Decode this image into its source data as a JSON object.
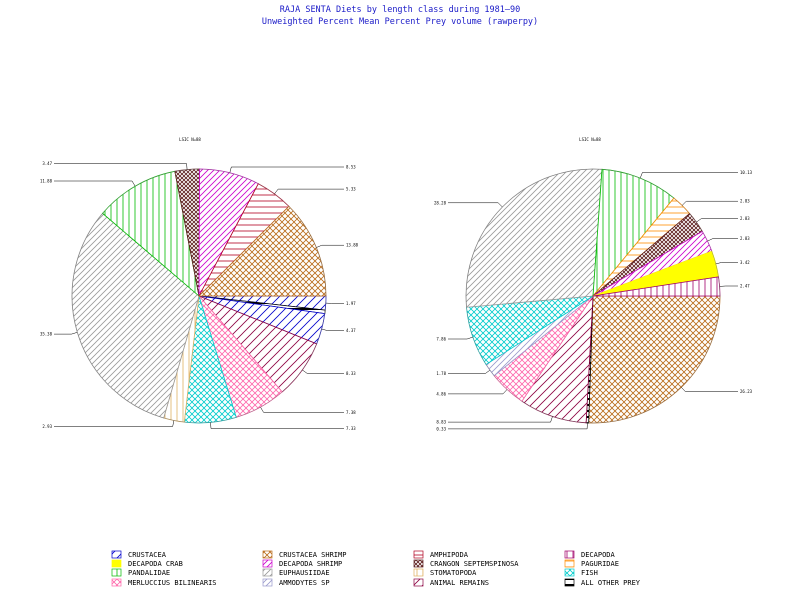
{
  "title": {
    "line1": "RAJA SENTA Diets by length class during 1981—90",
    "line2": "Unweighted Percent Mean Percent Prey  volume (rawperpy)"
  },
  "legend": [
    {
      "label": "CRUSTACEA",
      "color": "#0000cc",
      "pattern": "diag-sparse"
    },
    {
      "label": "CRUSTACEA SHRIMP",
      "color": "#b86b1a",
      "pattern": "cross"
    },
    {
      "label": "AMPHIPODA",
      "color": "#b00020",
      "pattern": "horiz"
    },
    {
      "label": "DECAPODA",
      "color": "#a0006a",
      "pattern": "vert"
    },
    {
      "label": "DECAPODA CRAB",
      "color": "#ffff00",
      "pattern": "solid"
    },
    {
      "label": "DECAPODA SHRIMP",
      "color": "#cc00cc",
      "pattern": "diag"
    },
    {
      "label": "CRANGON SEPTEMSPINOSA",
      "color": "#5a1a1a",
      "pattern": "cross-dense"
    },
    {
      "label": "PAGURIDAE",
      "color": "#ff8c00",
      "pattern": "horiz"
    },
    {
      "label": "PANDALIDAE",
      "color": "#00bb00",
      "pattern": "vert"
    },
    {
      "label": "EUPHAUSIIDAE",
      "color": "#999999",
      "pattern": "diag"
    },
    {
      "label": "STOMATOPODA",
      "color": "#e0b060",
      "pattern": "vert"
    },
    {
      "label": "FISH",
      "color": "#00cccc",
      "pattern": "cross"
    },
    {
      "label": "MERLUCCIUS BILINEARIS",
      "color": "#ff66aa",
      "pattern": "cross"
    },
    {
      "label": "AMMODYTES SP",
      "color": "#9999cc",
      "pattern": "diag"
    },
    {
      "label": "ANIMAL REMAINS",
      "color": "#8b0040",
      "pattern": "diag-sparse"
    },
    {
      "label": "ALL OTHER PREY",
      "color": "#000000",
      "pattern": "horiz-thick"
    }
  ],
  "chart_data": [
    {
      "type": "pie",
      "title": "LSIC N=88",
      "slices": [
        {
          "category": "CRUSTACEA",
          "value": 1.97,
          "label": "1.97"
        },
        {
          "category": "ALL OTHER PREY",
          "value": 0.5,
          "label": ""
        },
        {
          "category": "CRUSTACEA",
          "value": 4.37,
          "label": "4.37"
        },
        {
          "category": "ANIMAL REMAINS",
          "value": 8.33,
          "label": "8.33"
        },
        {
          "category": "MERLUCCIUS BILINEARIS",
          "value": 7.38,
          "label": "7.38"
        },
        {
          "category": "FISH",
          "value": 7.33,
          "label": "7.33"
        },
        {
          "category": "STOMATOPODA",
          "value": 2.93,
          "label": "2.93"
        },
        {
          "category": "EUPHAUSIIDAE",
          "value": 35.38,
          "label": "35.38"
        },
        {
          "category": "PANDALIDAE",
          "value": 11.88,
          "label": "11.88"
        },
        {
          "category": "CRANGON SEPTEMSPINOSA",
          "value": 3.47,
          "label": "3.47"
        },
        {
          "category": "DECAPODA SHRIMP",
          "value": 8.53,
          "label": "8.53"
        },
        {
          "category": "AMPHIPODA",
          "value": 5.33,
          "label": "5.33"
        },
        {
          "category": "CRUSTACEA SHRIMP",
          "value": 13.88,
          "label": "13.88"
        }
      ]
    },
    {
      "type": "pie",
      "title": "LSIC N=88",
      "slices": [
        {
          "category": "CRUSTACEA SHRIMP",
          "value": 26.23,
          "label": "26.23"
        },
        {
          "category": "ALL OTHER PREY",
          "value": 0.33,
          "label": "0.33"
        },
        {
          "category": "ANIMAL REMAINS",
          "value": 8.83,
          "label": "8.83"
        },
        {
          "category": "MERLUCCIUS BILINEARIS",
          "value": 4.86,
          "label": "4.86"
        },
        {
          "category": "AMMODYTES SP",
          "value": 1.78,
          "label": "1.78"
        },
        {
          "category": "FISH",
          "value": 7.86,
          "label": "7.86"
        },
        {
          "category": "EUPHAUSIIDAE",
          "value": 28.28,
          "label": "28.28"
        },
        {
          "category": "PANDALIDAE",
          "value": 10.13,
          "label": "10.13"
        },
        {
          "category": "PAGURIDAE",
          "value": 2.83,
          "label": "2.83"
        },
        {
          "category": "CRANGON SEPTEMSPINOSA",
          "value": 2.83,
          "label": "2.83"
        },
        {
          "category": "DECAPODA SHRIMP",
          "value": 2.83,
          "label": "2.83"
        },
        {
          "category": "DECAPODA CRAB",
          "value": 3.42,
          "label": "3.42"
        },
        {
          "category": "DECAPODA",
          "value": 2.47,
          "label": "2.47"
        }
      ]
    }
  ]
}
